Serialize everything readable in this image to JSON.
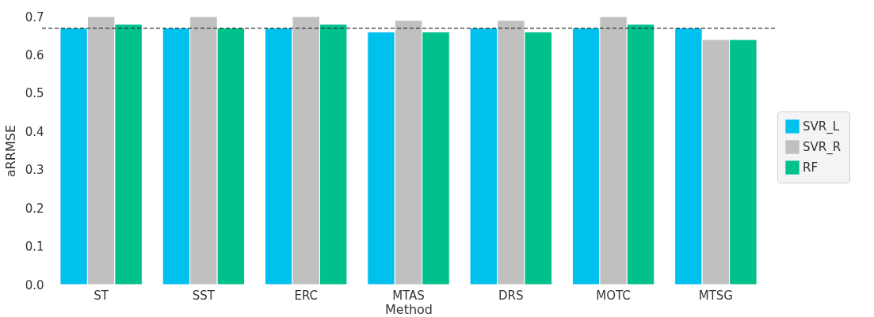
{
  "chart_data": {
    "type": "bar",
    "xlabel": "Method",
    "ylabel": "aRRMSE",
    "categories": [
      "ST",
      "SST",
      "ERC",
      "MTAS",
      "DRS",
      "MOTC",
      "MTSG"
    ],
    "series": [
      {
        "name": "SVR_L",
        "color": "#00c0ed",
        "values": [
          0.67,
          0.67,
          0.67,
          0.66,
          0.67,
          0.67,
          0.67
        ]
      },
      {
        "name": "SVR_R",
        "color": "#c0c0c0",
        "values": [
          0.7,
          0.7,
          0.7,
          0.69,
          0.69,
          0.7,
          0.64
        ]
      },
      {
        "name": "RF",
        "color": "#00c08b",
        "values": [
          0.68,
          0.67,
          0.68,
          0.66,
          0.66,
          0.68,
          0.64
        ]
      }
    ],
    "ylim": [
      0,
      0.7
    ],
    "yticks": [
      {
        "value": 0,
        "label": "0.0"
      },
      0.1,
      0.2,
      0.3,
      0.4,
      0.5,
      0.6,
      0.7
    ],
    "ref_lines": [
      {
        "axis": "y",
        "value": 0.67,
        "label": null,
        "color": "#333333",
        "line_style": "dashed"
      }
    ],
    "grid": false,
    "legend": "right"
  }
}
